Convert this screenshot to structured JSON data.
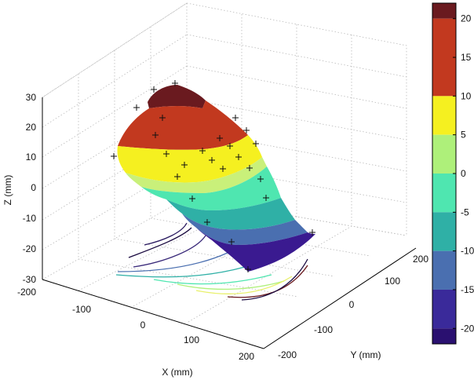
{
  "chart_data": {
    "type": "surface3d",
    "title": "",
    "xlabel": "X (mm)",
    "ylabel": "Y (mm)",
    "zlabel": "Z (mm)",
    "x_ticks": [
      "-200",
      "-100",
      "0",
      "100",
      "200"
    ],
    "y_ticks": [
      "-200",
      "-100",
      "0",
      "100",
      "200"
    ],
    "z_ticks": [
      "30",
      "20",
      "10",
      "0",
      "-10",
      "-20",
      "-30"
    ],
    "xlim": [
      -200,
      200
    ],
    "ylim": [
      -200,
      200
    ],
    "zlim": [
      -30,
      30
    ],
    "grid": true,
    "colormap": "jet",
    "colorbar": {
      "ticks": [
        "20",
        "15",
        "10",
        "5",
        "0",
        "-5",
        "-10",
        "-15",
        "-20"
      ],
      "range": [
        -22,
        22
      ],
      "levels": [
        {
          "from": 20,
          "to": 22,
          "color": "#6a1a1f"
        },
        {
          "from": 10,
          "to": 20,
          "color": "#c2391f"
        },
        {
          "from": 5,
          "to": 10,
          "color": "#f5f020"
        },
        {
          "from": 0,
          "to": 5,
          "color": "#aef07a"
        },
        {
          "from": -5,
          "to": 0,
          "color": "#4fe6b0"
        },
        {
          "from": -10,
          "to": -5,
          "color": "#2fb0a6"
        },
        {
          "from": -15,
          "to": -10,
          "color": "#4a6fb0"
        },
        {
          "from": -20,
          "to": -15,
          "color": "#3a2a9a"
        },
        {
          "from": -22,
          "to": -20,
          "color": "#2a1070"
        }
      ]
    },
    "surface_levels": [
      {
        "level": "20 to 22",
        "color": "#6a1a1f"
      },
      {
        "level": "10 to 20",
        "color": "#c2391f"
      },
      {
        "level": "5 to 10",
        "color": "#f5f020"
      },
      {
        "level": "0 to 5",
        "color": "#c9f07a"
      },
      {
        "level": "-5 to 0",
        "color": "#4fe6b0"
      },
      {
        "level": "-10 to -5",
        "color": "#2fb0a6"
      },
      {
        "level": "-15 to -10",
        "color": "#4a6fb0"
      },
      {
        "level": "-22 to -15",
        "color": "#3a1a90"
      }
    ],
    "contour_colors": [
      "#1a0a40",
      "#3a2a9a",
      "#4a6fb0",
      "#2fb0a6",
      "#4fe6b0",
      "#aef07a",
      "#e8f06a",
      "#c2391f",
      "#6a1a1f"
    ]
  }
}
